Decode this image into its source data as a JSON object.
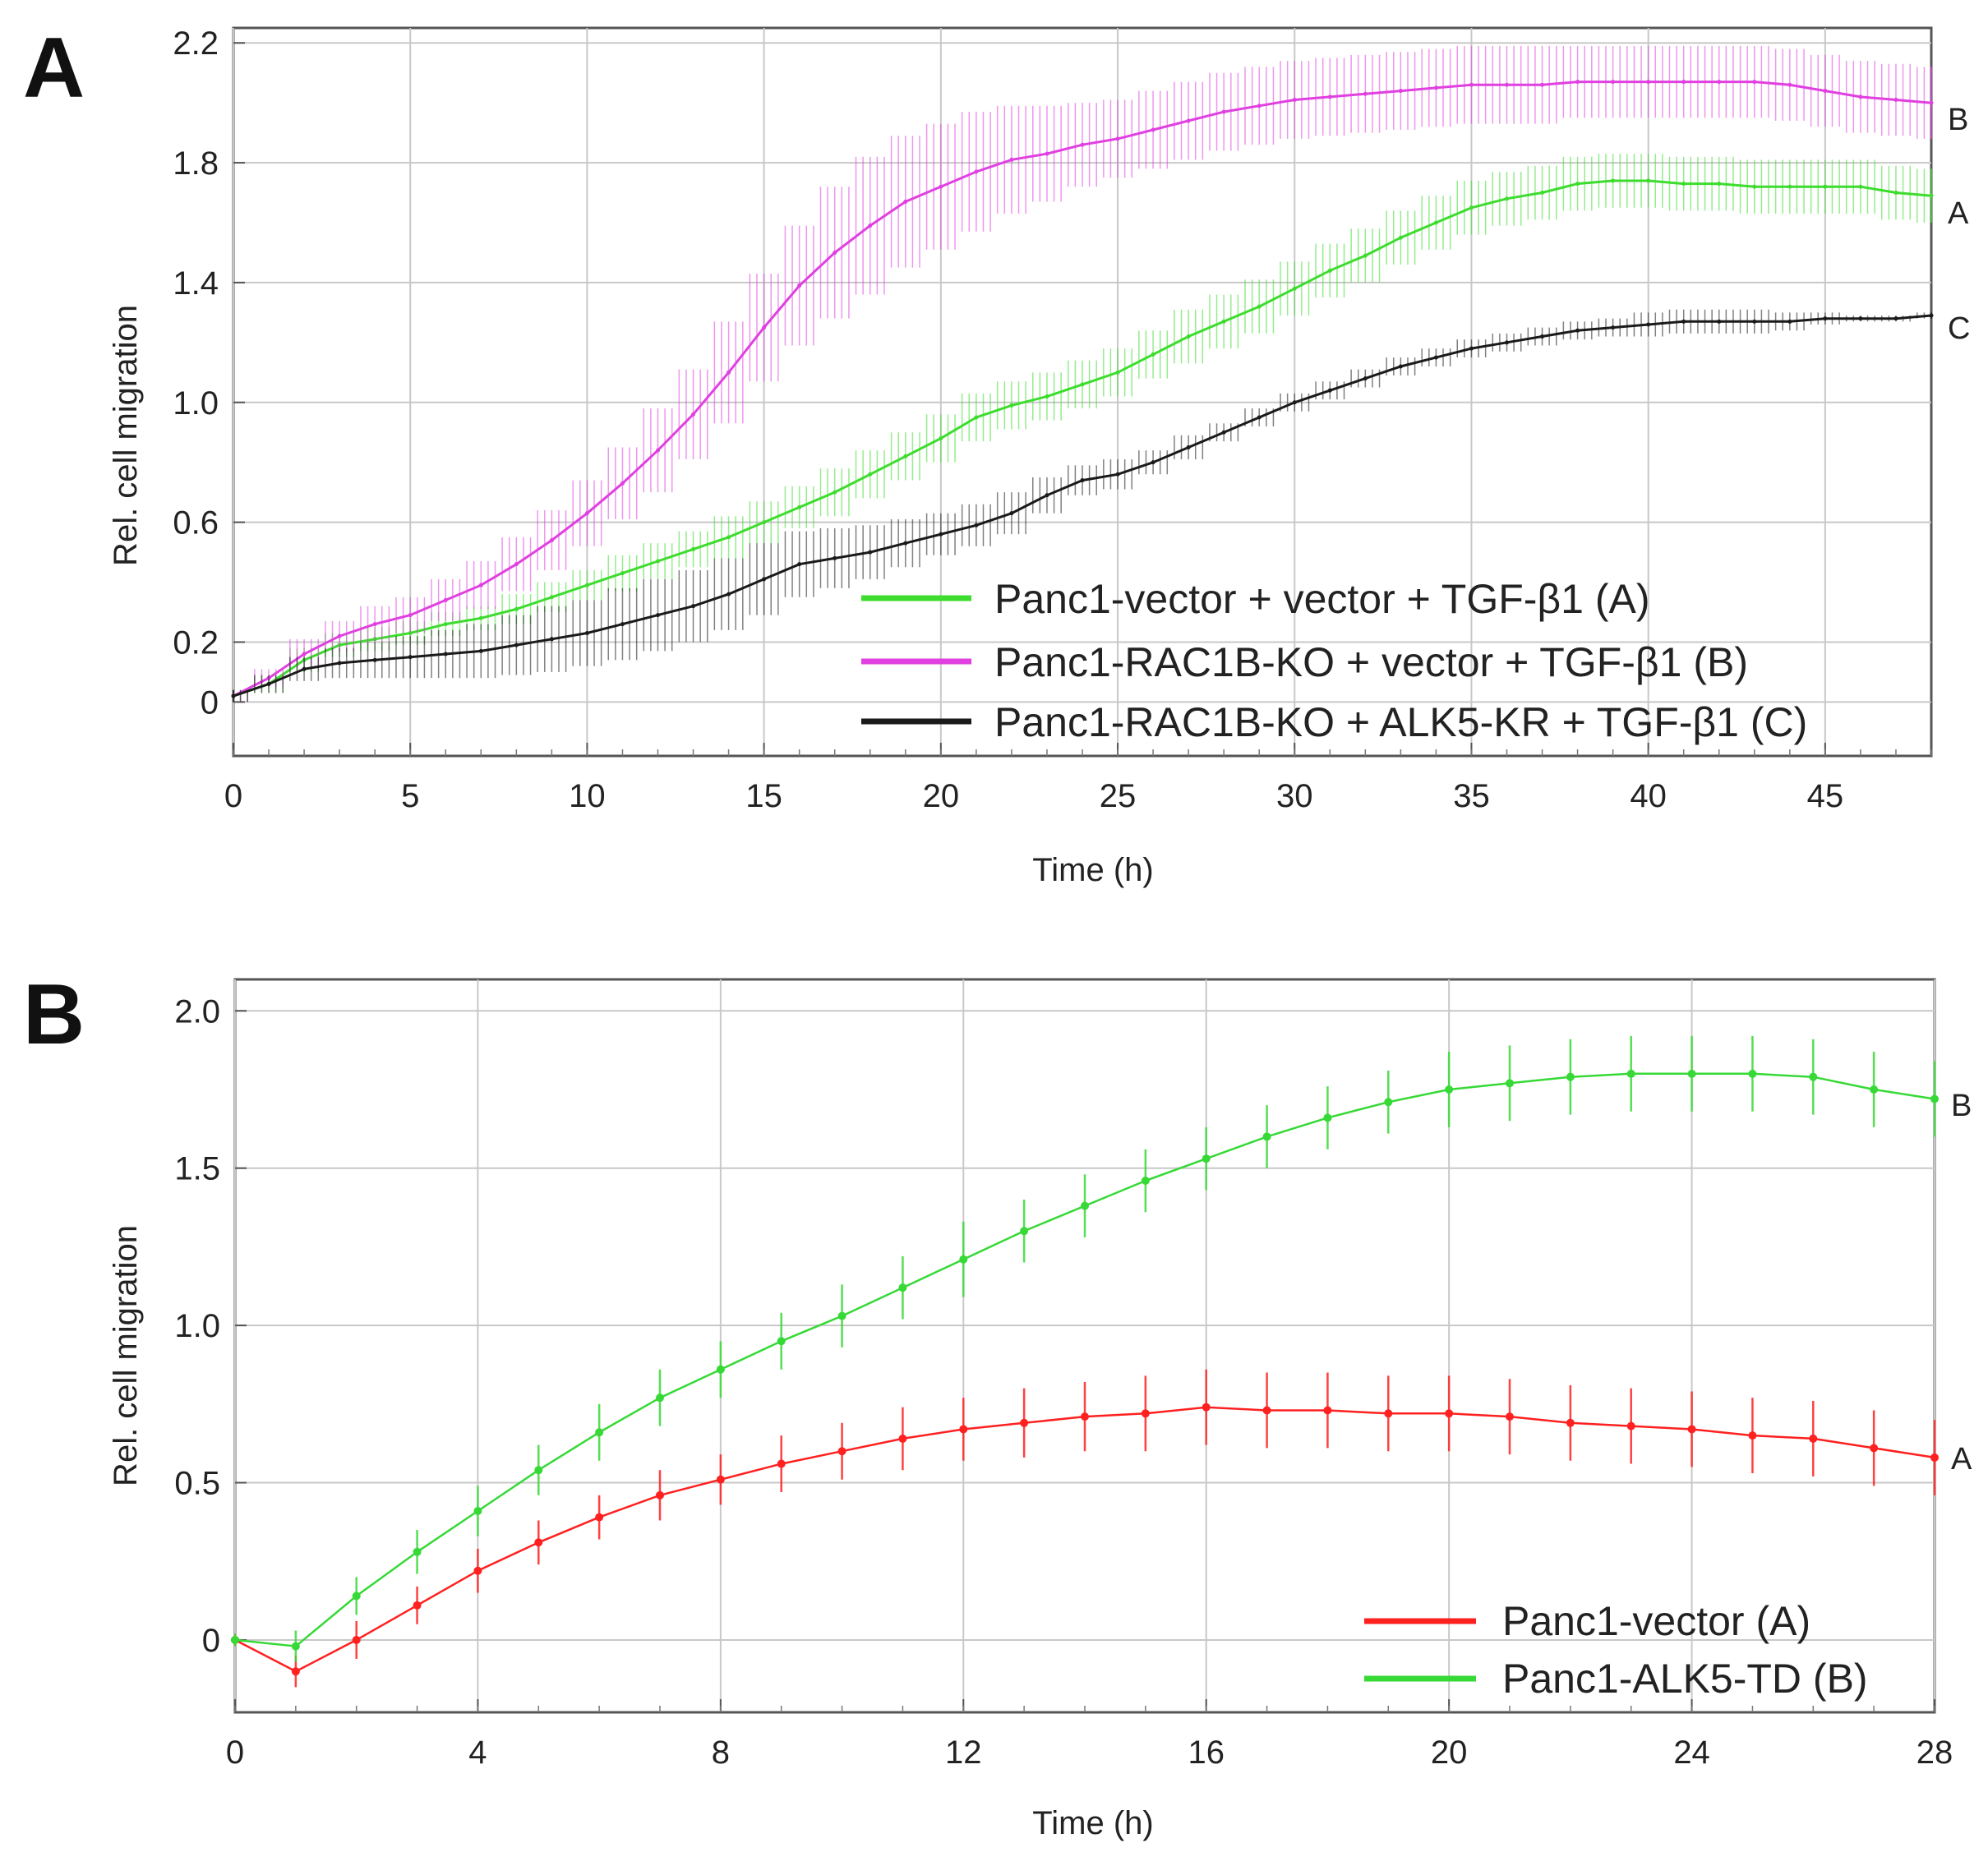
{
  "chart_data": [
    {
      "panel": "A",
      "type": "line",
      "xlabel": "Time (h)",
      "ylabel": "Rel. cell migration",
      "xlim": [
        0,
        48
      ],
      "ylim": [
        -0.18,
        2.25
      ],
      "xticks": [
        0,
        5,
        10,
        15,
        20,
        25,
        30,
        35,
        40,
        45
      ],
      "xtick_labels": [
        "0",
        "5",
        "10",
        "15",
        "20",
        "25",
        "30",
        "35",
        "40",
        "45"
      ],
      "yticks": [
        0,
        0.2,
        0.6,
        1.0,
        1.4,
        1.8,
        2.2
      ],
      "ytick_labels": [
        "0",
        "0.2",
        "0.6",
        "1.0",
        "1.4",
        "1.8",
        "2.2"
      ],
      "grid": true,
      "legend_position": "bottom-right",
      "series": [
        {
          "name": "Panc1-vector + vector + TGF-β1 (A)",
          "end_label": "A",
          "color": "#3ddc2e",
          "points": [
            [
              0,
              0.02
            ],
            [
              1,
              0.06
            ],
            [
              2,
              0.14
            ],
            [
              3,
              0.19
            ],
            [
              4,
              0.21
            ],
            [
              5,
              0.23
            ],
            [
              6,
              0.26
            ],
            [
              7,
              0.28
            ],
            [
              8,
              0.31
            ],
            [
              9,
              0.35
            ],
            [
              10,
              0.39
            ],
            [
              11,
              0.43
            ],
            [
              12,
              0.47
            ],
            [
              13,
              0.51
            ],
            [
              14,
              0.55
            ],
            [
              15,
              0.6
            ],
            [
              16,
              0.65
            ],
            [
              17,
              0.7
            ],
            [
              18,
              0.76
            ],
            [
              19,
              0.82
            ],
            [
              20,
              0.88
            ],
            [
              21,
              0.95
            ],
            [
              22,
              0.99
            ],
            [
              23,
              1.02
            ],
            [
              24,
              1.06
            ],
            [
              25,
              1.1
            ],
            [
              26,
              1.16
            ],
            [
              27,
              1.22
            ],
            [
              28,
              1.27
            ],
            [
              29,
              1.32
            ],
            [
              30,
              1.38
            ],
            [
              31,
              1.44
            ],
            [
              32,
              1.49
            ],
            [
              33,
              1.55
            ],
            [
              34,
              1.6
            ],
            [
              35,
              1.65
            ],
            [
              36,
              1.68
            ],
            [
              37,
              1.7
            ],
            [
              38,
              1.73
            ],
            [
              39,
              1.74
            ],
            [
              40,
              1.74
            ],
            [
              41,
              1.73
            ],
            [
              42,
              1.73
            ],
            [
              43,
              1.72
            ],
            [
              44,
              1.72
            ],
            [
              45,
              1.72
            ],
            [
              46,
              1.72
            ],
            [
              47,
              1.7
            ],
            [
              48,
              1.69
            ]
          ],
          "errors": [
            0.02,
            0.03,
            0.04,
            0.04,
            0.04,
            0.04,
            0.04,
            0.04,
            0.05,
            0.05,
            0.05,
            0.06,
            0.06,
            0.06,
            0.07,
            0.07,
            0.07,
            0.08,
            0.08,
            0.08,
            0.08,
            0.08,
            0.08,
            0.08,
            0.08,
            0.08,
            0.08,
            0.09,
            0.09,
            0.09,
            0.09,
            0.09,
            0.09,
            0.09,
            0.09,
            0.09,
            0.09,
            0.09,
            0.09,
            0.09,
            0.09,
            0.09,
            0.09,
            0.09,
            0.09,
            0.09,
            0.09,
            0.09,
            0.09
          ]
        },
        {
          "name": "Panc1-RAC1B-KO + vector + TGF-β1 (B)",
          "end_label": "B",
          "color": "#e040e0",
          "points": [
            [
              0,
              0.02
            ],
            [
              1,
              0.08
            ],
            [
              2,
              0.16
            ],
            [
              3,
              0.22
            ],
            [
              4,
              0.26
            ],
            [
              5,
              0.29
            ],
            [
              6,
              0.34
            ],
            [
              7,
              0.39
            ],
            [
              8,
              0.46
            ],
            [
              9,
              0.54
            ],
            [
              10,
              0.63
            ],
            [
              11,
              0.73
            ],
            [
              12,
              0.84
            ],
            [
              13,
              0.96
            ],
            [
              14,
              1.1
            ],
            [
              15,
              1.25
            ],
            [
              16,
              1.39
            ],
            [
              17,
              1.5
            ],
            [
              18,
              1.59
            ],
            [
              19,
              1.67
            ],
            [
              20,
              1.72
            ],
            [
              21,
              1.77
            ],
            [
              22,
              1.81
            ],
            [
              23,
              1.83
            ],
            [
              24,
              1.86
            ],
            [
              25,
              1.88
            ],
            [
              26,
              1.91
            ],
            [
              27,
              1.94
            ],
            [
              28,
              1.97
            ],
            [
              29,
              1.99
            ],
            [
              30,
              2.01
            ],
            [
              31,
              2.02
            ],
            [
              32,
              2.03
            ],
            [
              33,
              2.04
            ],
            [
              34,
              2.05
            ],
            [
              35,
              2.06
            ],
            [
              36,
              2.06
            ],
            [
              37,
              2.06
            ],
            [
              38,
              2.07
            ],
            [
              39,
              2.07
            ],
            [
              40,
              2.07
            ],
            [
              41,
              2.07
            ],
            [
              42,
              2.07
            ],
            [
              43,
              2.07
            ],
            [
              44,
              2.06
            ],
            [
              45,
              2.04
            ],
            [
              46,
              2.02
            ],
            [
              47,
              2.01
            ],
            [
              48,
              2.0
            ]
          ],
          "errors": [
            0.02,
            0.03,
            0.05,
            0.05,
            0.06,
            0.06,
            0.07,
            0.08,
            0.09,
            0.1,
            0.11,
            0.12,
            0.14,
            0.15,
            0.17,
            0.18,
            0.2,
            0.22,
            0.23,
            0.22,
            0.21,
            0.2,
            0.18,
            0.16,
            0.14,
            0.13,
            0.13,
            0.13,
            0.13,
            0.13,
            0.13,
            0.13,
            0.13,
            0.13,
            0.13,
            0.13,
            0.13,
            0.13,
            0.12,
            0.12,
            0.12,
            0.12,
            0.12,
            0.12,
            0.12,
            0.12,
            0.12,
            0.12,
            0.12
          ]
        },
        {
          "name": "Panc1-RAC1B-KO + ALK5-KR + TGF-β1 (C)",
          "end_label": "C",
          "color": "#1a1a1a",
          "points": [
            [
              0,
              0.02
            ],
            [
              1,
              0.06
            ],
            [
              2,
              0.11
            ],
            [
              3,
              0.13
            ],
            [
              4,
              0.14
            ],
            [
              5,
              0.15
            ],
            [
              6,
              0.16
            ],
            [
              7,
              0.17
            ],
            [
              8,
              0.19
            ],
            [
              9,
              0.21
            ],
            [
              10,
              0.23
            ],
            [
              11,
              0.26
            ],
            [
              12,
              0.29
            ],
            [
              13,
              0.32
            ],
            [
              14,
              0.36
            ],
            [
              15,
              0.41
            ],
            [
              16,
              0.46
            ],
            [
              17,
              0.48
            ],
            [
              18,
              0.5
            ],
            [
              19,
              0.53
            ],
            [
              20,
              0.56
            ],
            [
              21,
              0.59
            ],
            [
              22,
              0.63
            ],
            [
              23,
              0.69
            ],
            [
              24,
              0.74
            ],
            [
              25,
              0.76
            ],
            [
              26,
              0.8
            ],
            [
              27,
              0.85
            ],
            [
              28,
              0.9
            ],
            [
              29,
              0.95
            ],
            [
              30,
              1.0
            ],
            [
              31,
              1.04
            ],
            [
              32,
              1.08
            ],
            [
              33,
              1.12
            ],
            [
              34,
              1.15
            ],
            [
              35,
              1.18
            ],
            [
              36,
              1.2
            ],
            [
              37,
              1.22
            ],
            [
              38,
              1.24
            ],
            [
              39,
              1.25
            ],
            [
              40,
              1.26
            ],
            [
              41,
              1.27
            ],
            [
              42,
              1.27
            ],
            [
              43,
              1.27
            ],
            [
              44,
              1.27
            ],
            [
              45,
              1.28
            ],
            [
              46,
              1.28
            ],
            [
              47,
              1.28
            ],
            [
              48,
              1.29
            ]
          ],
          "errors": [
            0.02,
            0.03,
            0.04,
            0.05,
            0.06,
            0.07,
            0.08,
            0.09,
            0.1,
            0.11,
            0.11,
            0.12,
            0.12,
            0.12,
            0.12,
            0.12,
            0.11,
            0.1,
            0.09,
            0.08,
            0.07,
            0.07,
            0.07,
            0.06,
            0.05,
            0.05,
            0.04,
            0.04,
            0.03,
            0.03,
            0.03,
            0.03,
            0.03,
            0.03,
            0.03,
            0.03,
            0.03,
            0.03,
            0.03,
            0.03,
            0.04,
            0.04,
            0.04,
            0.04,
            0.03,
            0.02,
            0.01,
            0.01,
            0.01
          ]
        }
      ]
    },
    {
      "panel": "B",
      "type": "line",
      "xlabel": "Time (h)",
      "ylabel": "Rel. cell migration",
      "xlim": [
        0,
        28
      ],
      "ylim": [
        -0.23,
        2.1
      ],
      "xticks": [
        0,
        4,
        8,
        12,
        16,
        20,
        24,
        28
      ],
      "xtick_labels": [
        "0",
        "4",
        "8",
        "12",
        "16",
        "20",
        "24",
        "28"
      ],
      "yticks": [
        0,
        0.5,
        1.0,
        1.5,
        2.0
      ],
      "ytick_labels": [
        "0",
        "0.5",
        "1.0",
        "1.5",
        "2.0"
      ],
      "grid": true,
      "legend_position": "bottom-right",
      "series": [
        {
          "name": "Panc1-vector (A)",
          "end_label": "A",
          "color": "#ff2020",
          "points": [
            [
              0,
              0
            ],
            [
              1,
              -0.1
            ],
            [
              2,
              0.0
            ],
            [
              3,
              0.11
            ],
            [
              4,
              0.22
            ],
            [
              5,
              0.31
            ],
            [
              6,
              0.39
            ],
            [
              7,
              0.46
            ],
            [
              8,
              0.51
            ],
            [
              9,
              0.56
            ],
            [
              10,
              0.6
            ],
            [
              11,
              0.64
            ],
            [
              12,
              0.67
            ],
            [
              13,
              0.69
            ],
            [
              14,
              0.71
            ],
            [
              15,
              0.72
            ],
            [
              16,
              0.74
            ],
            [
              17,
              0.73
            ],
            [
              18,
              0.73
            ],
            [
              19,
              0.72
            ],
            [
              20,
              0.72
            ],
            [
              21,
              0.71
            ],
            [
              22,
              0.69
            ],
            [
              23,
              0.68
            ],
            [
              24,
              0.67
            ],
            [
              25,
              0.65
            ],
            [
              26,
              0.64
            ],
            [
              27,
              0.61
            ],
            [
              28,
              0.58
            ]
          ],
          "errors": [
            0.02,
            0.05,
            0.06,
            0.06,
            0.07,
            0.07,
            0.07,
            0.08,
            0.08,
            0.09,
            0.09,
            0.1,
            0.1,
            0.11,
            0.11,
            0.12,
            0.12,
            0.12,
            0.12,
            0.12,
            0.12,
            0.12,
            0.12,
            0.12,
            0.12,
            0.12,
            0.12,
            0.12,
            0.12
          ]
        },
        {
          "name": "Panc1-ALK5-TD (B)",
          "end_label": "B",
          "color": "#36d936",
          "points": [
            [
              0,
              0
            ],
            [
              1,
              -0.02
            ],
            [
              2,
              0.14
            ],
            [
              3,
              0.28
            ],
            [
              4,
              0.41
            ],
            [
              5,
              0.54
            ],
            [
              6,
              0.66
            ],
            [
              7,
              0.77
            ],
            [
              8,
              0.86
            ],
            [
              9,
              0.95
            ],
            [
              10,
              1.03
            ],
            [
              11,
              1.12
            ],
            [
              12,
              1.21
            ],
            [
              13,
              1.3
            ],
            [
              14,
              1.38
            ],
            [
              15,
              1.46
            ],
            [
              16,
              1.53
            ],
            [
              17,
              1.6
            ],
            [
              18,
              1.66
            ],
            [
              19,
              1.71
            ],
            [
              20,
              1.75
            ],
            [
              21,
              1.77
            ],
            [
              22,
              1.79
            ],
            [
              23,
              1.8
            ],
            [
              24,
              1.8
            ],
            [
              25,
              1.8
            ],
            [
              26,
              1.79
            ],
            [
              27,
              1.75
            ],
            [
              28,
              1.72
            ]
          ],
          "errors": [
            0.02,
            0.05,
            0.06,
            0.07,
            0.08,
            0.08,
            0.09,
            0.09,
            0.09,
            0.09,
            0.1,
            0.1,
            0.12,
            0.1,
            0.1,
            0.1,
            0.1,
            0.1,
            0.1,
            0.1,
            0.12,
            0.12,
            0.12,
            0.12,
            0.12,
            0.12,
            0.12,
            0.12,
            0.12
          ]
        }
      ]
    }
  ]
}
